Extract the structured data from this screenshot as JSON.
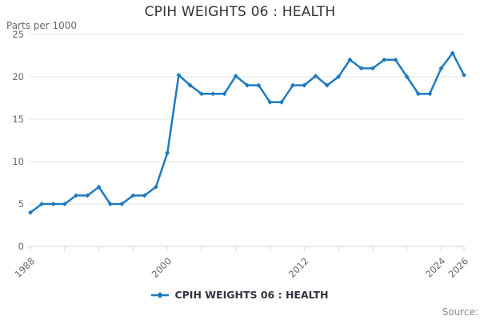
{
  "header": {
    "title": "CPIH WEIGHTS 06 : HEALTH"
  },
  "y_axis": {
    "title": "Parts per 1000",
    "ticks": [
      0,
      5,
      10,
      15,
      20,
      25
    ],
    "max": 25
  },
  "x_axis": {
    "tick_years": [
      1988,
      1991,
      1994,
      1997,
      2000,
      2003,
      2006,
      2009,
      2012,
      2015,
      2018,
      2021,
      2024,
      2026
    ],
    "labeled_years": [
      1988,
      2000,
      2012,
      2024,
      2026
    ]
  },
  "legend": {
    "label": "CPIH WEIGHTS 06 : HEALTH"
  },
  "footer": {
    "source_label": "Source:"
  },
  "colors": {
    "line": "#1e7ac0",
    "grid": "#e6e6e6",
    "axis": "#ccd6eb",
    "tick_label": "#666666",
    "title": "#333333",
    "legend_text": "#333340",
    "source_text": "#8a8a8a"
  },
  "chart_data": {
    "type": "line",
    "title": "CPIH WEIGHTS 06 : HEALTH",
    "ylabel": "Parts per 1000",
    "ylim": [
      0,
      25
    ],
    "grid": "horizontal-only",
    "legend_position": "bottom",
    "marker": "diamond",
    "x": [
      1988,
      1989,
      1990,
      1991,
      1992,
      1993,
      1994,
      1995,
      1996,
      1997,
      1998,
      1999,
      2000,
      2001,
      2002,
      2003,
      2004,
      2005,
      2006,
      2007,
      2008,
      2009,
      2010,
      2011,
      2012,
      2013,
      2014,
      2015,
      2016,
      2017,
      2018,
      2019,
      2020,
      2021,
      2022,
      2023,
      2024,
      2025,
      2026
    ],
    "series": [
      {
        "name": "CPIH WEIGHTS 06 : HEALTH",
        "values": [
          4,
          5,
          5,
          5,
          6,
          6,
          7,
          5,
          5,
          6,
          6,
          7,
          11,
          20.2,
          19,
          18,
          18,
          18,
          20.1,
          19,
          19,
          17,
          17,
          19,
          19,
          20.1,
          19,
          20,
          22,
          21,
          21,
          22,
          22,
          20,
          18,
          18,
          21,
          22.8,
          20.2
        ]
      }
    ]
  }
}
